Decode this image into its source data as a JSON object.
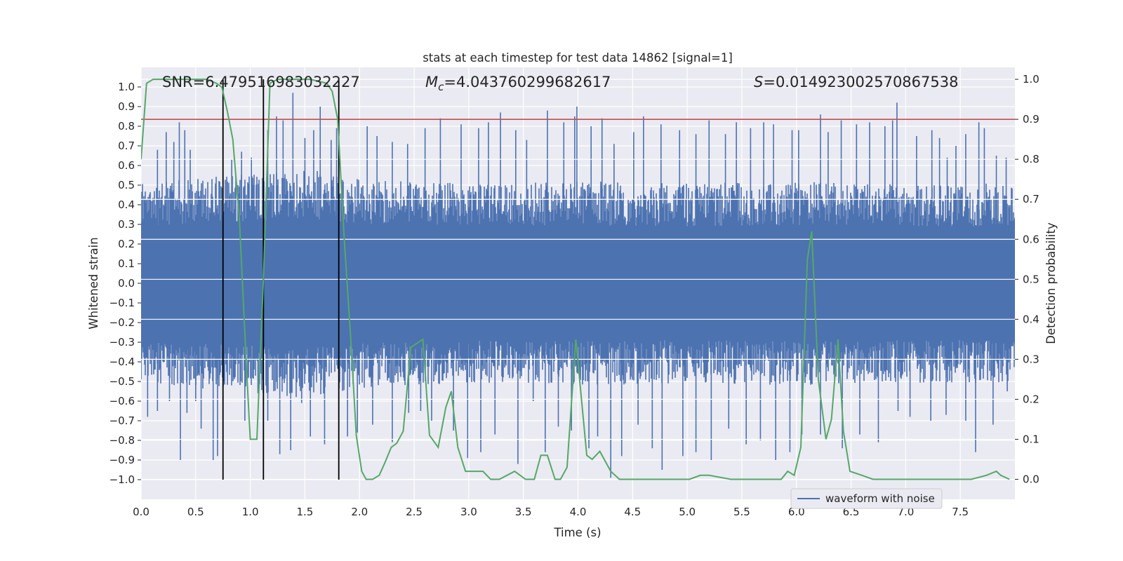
{
  "chart_data": {
    "type": "line",
    "title": "stats at each timestep for test data 14862 [signal=1]",
    "xlabel": "Time (s)",
    "ylabel": "Whitened strain",
    "ylabel_right": "Detection probability",
    "xlim": [
      0,
      8
    ],
    "ylim": [
      -1.1,
      1.1
    ],
    "ylim_right": [
      -0.05,
      1.03
    ],
    "xticks": [
      "0.0",
      "0.5",
      "1.0",
      "1.5",
      "2.0",
      "2.5",
      "3.0",
      "3.5",
      "4.0",
      "4.5",
      "5.0",
      "5.5",
      "6.0",
      "6.5",
      "7.0",
      "7.5"
    ],
    "yticks": [
      "1.0",
      "0.9",
      "0.8",
      "0.7",
      "0.6",
      "0.5",
      "0.4",
      "0.3",
      "0.2",
      "0.1",
      "0.0",
      "-0.1",
      "-0.2",
      "-0.3",
      "-0.4",
      "-0.5",
      "-0.6",
      "-0.7",
      "-0.8",
      "-0.9",
      "-1.0"
    ],
    "yticks_right": [
      "1.0",
      "0.9",
      "0.8",
      "0.7",
      "0.6",
      "0.5",
      "0.4",
      "0.3",
      "0.2",
      "0.1",
      "0.0"
    ],
    "annotations": {
      "snr": "SNR=6.479516983032227",
      "mc_symbol": "M",
      "mc_sub": "c",
      "mc_value": "=4.043760299682617",
      "s_symbol": "S",
      "s_value": "=0.014923002570867538"
    },
    "threshold_right": 0.9,
    "vlines": [
      0.75,
      1.12,
      1.81
    ],
    "waveform": {
      "name": "waveform with noise",
      "color": "#4c72b0",
      "envelope_upper": [
        [
          0.0,
          0.4
        ],
        [
          0.5,
          0.42
        ],
        [
          1.0,
          0.44
        ],
        [
          1.5,
          0.46
        ],
        [
          2.0,
          0.42
        ],
        [
          3.0,
          0.4
        ],
        [
          4.0,
          0.41
        ],
        [
          5.0,
          0.4
        ],
        [
          6.0,
          0.41
        ],
        [
          7.0,
          0.4
        ],
        [
          8.0,
          0.4
        ]
      ],
      "spikes_upper": [
        [
          0.05,
          0.42
        ],
        [
          0.15,
          0.68
        ],
        [
          0.23,
          0.77
        ],
        [
          0.3,
          0.72
        ],
        [
          0.35,
          0.82
        ],
        [
          0.4,
          0.78
        ],
        [
          0.45,
          0.68
        ],
        [
          0.75,
          0.82
        ],
        [
          0.83,
          0.63
        ],
        [
          0.92,
          0.67
        ],
        [
          1.01,
          0.64
        ],
        [
          1.16,
          0.78
        ],
        [
          1.24,
          0.85
        ],
        [
          1.3,
          0.83
        ],
        [
          1.39,
          0.97
        ],
        [
          1.5,
          0.74
        ],
        [
          1.58,
          0.78
        ],
        [
          1.64,
          0.9
        ],
        [
          1.74,
          0.73
        ],
        [
          1.79,
          0.79
        ],
        [
          2.07,
          0.8
        ],
        [
          2.16,
          0.75
        ],
        [
          2.3,
          0.72
        ],
        [
          2.44,
          0.71
        ],
        [
          2.6,
          0.79
        ],
        [
          2.74,
          0.84
        ],
        [
          2.93,
          0.81
        ],
        [
          3.09,
          0.79
        ],
        [
          3.18,
          0.82
        ],
        [
          3.29,
          0.87
        ],
        [
          3.43,
          0.78
        ],
        [
          3.53,
          0.73
        ],
        [
          3.72,
          0.88
        ],
        [
          3.87,
          0.82
        ],
        [
          3.97,
          0.85
        ],
        [
          3.99,
          0.9
        ],
        [
          4.12,
          0.8
        ],
        [
          4.22,
          0.84
        ],
        [
          4.33,
          0.71
        ],
        [
          4.51,
          0.77
        ],
        [
          4.6,
          0.85
        ],
        [
          4.76,
          0.81
        ],
        [
          4.93,
          0.78
        ],
        [
          5.08,
          0.76
        ],
        [
          5.2,
          0.83
        ],
        [
          5.35,
          0.76
        ],
        [
          5.45,
          0.82
        ],
        [
          5.58,
          0.79
        ],
        [
          5.7,
          0.82
        ],
        [
          5.79,
          0.81
        ],
        [
          5.96,
          0.78
        ],
        [
          6.02,
          0.78
        ],
        [
          6.22,
          0.86
        ],
        [
          6.29,
          0.77
        ],
        [
          6.41,
          0.83
        ],
        [
          6.55,
          0.81
        ],
        [
          6.67,
          0.82
        ],
        [
          6.81,
          0.8
        ],
        [
          6.88,
          0.83
        ],
        [
          6.92,
          0.92
        ],
        [
          7.1,
          0.75
        ],
        [
          7.24,
          0.78
        ],
        [
          7.31,
          0.74
        ],
        [
          7.38,
          0.64
        ],
        [
          7.46,
          0.7
        ],
        [
          7.55,
          0.76
        ],
        [
          7.67,
          0.82
        ],
        [
          7.72,
          0.79
        ],
        [
          7.83,
          0.65
        ],
        [
          7.92,
          0.64
        ]
      ],
      "spikes_lower": [
        [
          0.06,
          -0.68
        ],
        [
          0.15,
          -0.65
        ],
        [
          0.26,
          -0.6
        ],
        [
          0.36,
          -0.9
        ],
        [
          0.42,
          -0.66
        ],
        [
          0.5,
          -0.6
        ],
        [
          0.55,
          -0.74
        ],
        [
          0.66,
          -0.9
        ],
        [
          0.7,
          -0.88
        ],
        [
          0.95,
          -0.7
        ],
        [
          1.07,
          -0.56
        ],
        [
          1.16,
          -0.7
        ],
        [
          1.27,
          -0.87
        ],
        [
          1.37,
          -0.85
        ],
        [
          1.47,
          -0.61
        ],
        [
          1.55,
          -0.78
        ],
        [
          1.68,
          -0.82
        ],
        [
          1.89,
          -0.78
        ],
        [
          1.98,
          -0.76
        ],
        [
          2.12,
          -0.72
        ],
        [
          2.3,
          -0.81
        ],
        [
          2.45,
          -0.66
        ],
        [
          2.56,
          -0.65
        ],
        [
          2.66,
          -0.7
        ],
        [
          2.86,
          -0.75
        ],
        [
          2.99,
          -0.89
        ],
        [
          3.11,
          -0.86
        ],
        [
          3.24,
          -0.77
        ],
        [
          3.45,
          -0.92
        ],
        [
          3.59,
          -0.6
        ],
        [
          3.7,
          -0.86
        ],
        [
          3.82,
          -0.73
        ],
        [
          3.94,
          -0.75
        ],
        [
          4.1,
          -0.84
        ],
        [
          4.18,
          -0.78
        ],
        [
          4.3,
          -0.99
        ],
        [
          4.4,
          -0.88
        ],
        [
          4.55,
          -0.72
        ],
        [
          4.68,
          -0.84
        ],
        [
          4.77,
          -0.95
        ],
        [
          4.96,
          -0.88
        ],
        [
          5.08,
          -0.86
        ],
        [
          5.22,
          -0.9
        ],
        [
          5.38,
          -0.74
        ],
        [
          5.54,
          -0.82
        ],
        [
          5.67,
          -0.8
        ],
        [
          5.81,
          -0.9
        ],
        [
          5.94,
          -0.86
        ],
        [
          6.05,
          -0.77
        ],
        [
          6.22,
          -0.77
        ],
        [
          6.42,
          -0.84
        ],
        [
          6.58,
          -0.77
        ],
        [
          6.75,
          -0.81
        ],
        [
          6.93,
          -0.65
        ],
        [
          7.04,
          -0.68
        ],
        [
          7.23,
          -0.7
        ],
        [
          7.37,
          -0.67
        ],
        [
          7.55,
          -0.7
        ],
        [
          7.64,
          -0.86
        ],
        [
          7.8,
          -0.72
        ],
        [
          7.93,
          -0.55
        ]
      ]
    },
    "detection_probability": {
      "color": "#55a868",
      "points": [
        [
          0.0,
          0.8
        ],
        [
          0.05,
          0.99
        ],
        [
          0.11,
          1.0
        ],
        [
          0.2,
          1.0
        ],
        [
          0.3,
          1.0
        ],
        [
          0.4,
          1.0
        ],
        [
          0.5,
          1.0
        ],
        [
          0.6,
          1.0
        ],
        [
          0.69,
          0.99
        ],
        [
          0.74,
          0.98
        ],
        [
          0.79,
          0.92
        ],
        [
          0.84,
          0.85
        ],
        [
          0.9,
          0.65
        ],
        [
          0.97,
          0.25
        ],
        [
          1.0,
          0.1
        ],
        [
          1.06,
          0.1
        ],
        [
          1.12,
          0.5
        ],
        [
          1.18,
          0.99
        ],
        [
          1.25,
          1.0
        ],
        [
          1.4,
          1.0
        ],
        [
          1.55,
          1.0
        ],
        [
          1.7,
          0.99
        ],
        [
          1.75,
          0.97
        ],
        [
          1.8,
          0.9
        ],
        [
          1.86,
          0.6
        ],
        [
          1.92,
          0.35
        ],
        [
          1.97,
          0.11
        ],
        [
          2.02,
          0.02
        ],
        [
          2.06,
          0.0
        ],
        [
          2.12,
          0.0
        ],
        [
          2.18,
          0.01
        ],
        [
          2.23,
          0.04
        ],
        [
          2.29,
          0.08
        ],
        [
          2.34,
          0.09
        ],
        [
          2.4,
          0.12
        ],
        [
          2.47,
          0.33
        ],
        [
          2.58,
          0.35
        ],
        [
          2.64,
          0.11
        ],
        [
          2.72,
          0.08
        ],
        [
          2.79,
          0.18
        ],
        [
          2.84,
          0.22
        ],
        [
          2.9,
          0.08
        ],
        [
          2.97,
          0.02
        ],
        [
          3.04,
          0.02
        ],
        [
          3.13,
          0.02
        ],
        [
          3.2,
          0.0
        ],
        [
          3.28,
          0.0
        ],
        [
          3.42,
          0.02
        ],
        [
          3.52,
          0.0
        ],
        [
          3.6,
          0.0
        ],
        [
          3.66,
          0.06
        ],
        [
          3.72,
          0.06
        ],
        [
          3.79,
          0.0
        ],
        [
          3.84,
          0.0
        ],
        [
          3.9,
          0.03
        ],
        [
          3.98,
          0.35
        ],
        [
          4.08,
          0.06
        ],
        [
          4.13,
          0.05
        ],
        [
          4.2,
          0.07
        ],
        [
          4.3,
          0.02
        ],
        [
          4.38,
          0.0
        ],
        [
          4.6,
          0.0
        ],
        [
          5.02,
          0.0
        ],
        [
          5.12,
          0.01
        ],
        [
          5.2,
          0.01
        ],
        [
          5.4,
          0.0
        ],
        [
          5.72,
          0.0
        ],
        [
          5.86,
          0.0
        ],
        [
          5.92,
          0.02
        ],
        [
          5.98,
          0.01
        ],
        [
          6.04,
          0.08
        ],
        [
          6.1,
          0.55
        ],
        [
          6.14,
          0.62
        ],
        [
          6.2,
          0.25
        ],
        [
          6.27,
          0.1
        ],
        [
          6.32,
          0.15
        ],
        [
          6.38,
          0.35
        ],
        [
          6.43,
          0.12
        ],
        [
          6.49,
          0.02
        ],
        [
          6.6,
          0.01
        ],
        [
          6.7,
          0.0
        ],
        [
          7.0,
          0.0
        ],
        [
          7.4,
          0.0
        ],
        [
          7.6,
          0.0
        ],
        [
          7.74,
          0.01
        ],
        [
          7.83,
          0.02
        ],
        [
          7.87,
          0.01
        ],
        [
          7.95,
          0.0
        ]
      ]
    },
    "threshold_color": "#c44e52",
    "legend_position": "lower-right"
  }
}
